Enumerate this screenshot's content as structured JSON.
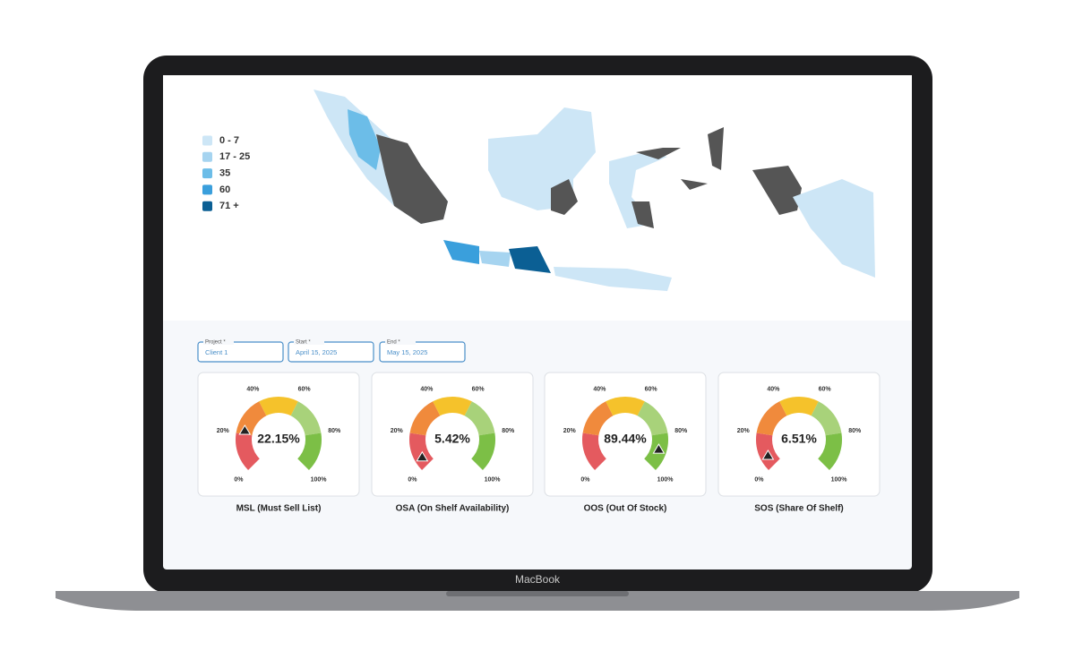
{
  "device_label": "MacBook",
  "legend": [
    {
      "label": "0 - 7",
      "color": "#cde6f6"
    },
    {
      "label": "17 - 25",
      "color": "#a6d4f0"
    },
    {
      "label": "35",
      "color": "#6cbde8"
    },
    {
      "label": "60",
      "color": "#3a9fdc"
    },
    {
      "label": "71 +",
      "color": "#0b5f94"
    }
  ],
  "filters": [
    {
      "label": "Project *",
      "value": "Client 1"
    },
    {
      "label": "Start *",
      "value": "April 15, 2025"
    },
    {
      "label": "End *",
      "value": "May 15, 2025"
    }
  ],
  "gauge_ticks": [
    {
      "value": 0,
      "label": "0%"
    },
    {
      "value": 20,
      "label": "20%"
    },
    {
      "value": 40,
      "label": "40%"
    },
    {
      "value": 60,
      "label": "60%"
    },
    {
      "value": 80,
      "label": "80%"
    },
    {
      "value": 100,
      "label": "100%"
    }
  ],
  "gauge_colors": [
    "#e45a5f",
    "#f08a3c",
    "#f5c22b",
    "#a8d27a",
    "#7cbf46"
  ],
  "gauges": [
    {
      "name": "MSL (Must Sell List)",
      "value": 22.15,
      "value_label": "22.15%"
    },
    {
      "name": "OSA (On Shelf Availability)",
      "value": 5.42,
      "value_label": "5.42%"
    },
    {
      "name": "OOS (Out Of Stock)",
      "value": 89.44,
      "value_label": "89.44%"
    },
    {
      "name": "SOS (Share Of Shelf)",
      "value": 6.51,
      "value_label": "6.51%"
    }
  ]
}
